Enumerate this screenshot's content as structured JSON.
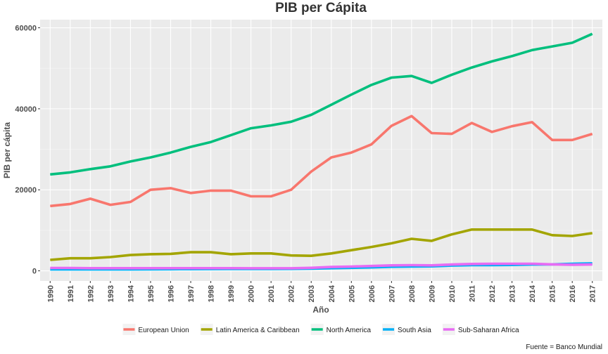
{
  "chart_data": {
    "type": "line",
    "title": "PIB per Cápita",
    "xlabel": "Año",
    "ylabel": "PIB per cápita",
    "caption": "Fuente = Banco Mundial",
    "x": [
      1990,
      1991,
      1992,
      1993,
      1994,
      1995,
      1996,
      1997,
      1998,
      1999,
      2000,
      2001,
      2002,
      2003,
      2004,
      2005,
      2006,
      2007,
      2008,
      2009,
      2010,
      2011,
      2012,
      2013,
      2014,
      2015,
      2016,
      2017
    ],
    "xlim": [
      1989.5,
      2017.5
    ],
    "ylim": [
      -2500,
      62000
    ],
    "yticks": [
      0,
      20000,
      40000,
      60000
    ],
    "grid": true,
    "legend_position": "bottom",
    "series": [
      {
        "name": "European Union",
        "color": "#F8766D",
        "values": [
          16000,
          16500,
          17800,
          16300,
          17000,
          20000,
          20400,
          19200,
          19800,
          19800,
          18400,
          18400,
          20000,
          24500,
          28000,
          29200,
          31200,
          35800,
          38200,
          34000,
          33800,
          36500,
          34300,
          35700,
          36700,
          32300,
          32300,
          33800
        ]
      },
      {
        "name": "Latin America & Caribbean",
        "color": "#A3A500",
        "values": [
          2700,
          3100,
          3100,
          3400,
          3900,
          4100,
          4200,
          4600,
          4600,
          4100,
          4300,
          4300,
          3800,
          3700,
          4300,
          5100,
          5900,
          6800,
          7900,
          7400,
          9000,
          10200,
          10200,
          10200,
          10200,
          8800,
          8600,
          9300
        ]
      },
      {
        "name": "North America",
        "color": "#00BF7D",
        "values": [
          23800,
          24300,
          25100,
          25800,
          27000,
          28000,
          29200,
          30600,
          31800,
          33500,
          35200,
          35900,
          36800,
          38500,
          41000,
          43500,
          45900,
          47700,
          48100,
          46400,
          48400,
          50200,
          51700,
          53000,
          54500,
          55400,
          56300,
          58500
        ]
      },
      {
        "name": "South Asia",
        "color": "#00B0F6",
        "values": [
          350,
          350,
          350,
          350,
          350,
          380,
          400,
          420,
          430,
          440,
          450,
          470,
          480,
          560,
          650,
          750,
          850,
          1000,
          1050,
          1100,
          1300,
          1400,
          1400,
          1450,
          1550,
          1600,
          1750,
          1850
        ]
      },
      {
        "name": "Sub-Saharan Africa",
        "color": "#E76BF3",
        "values": [
          700,
          700,
          650,
          650,
          650,
          650,
          650,
          650,
          650,
          650,
          640,
          630,
          640,
          750,
          950,
          1050,
          1200,
          1350,
          1400,
          1350,
          1550,
          1700,
          1750,
          1750,
          1750,
          1600,
          1500,
          1550
        ]
      }
    ]
  }
}
